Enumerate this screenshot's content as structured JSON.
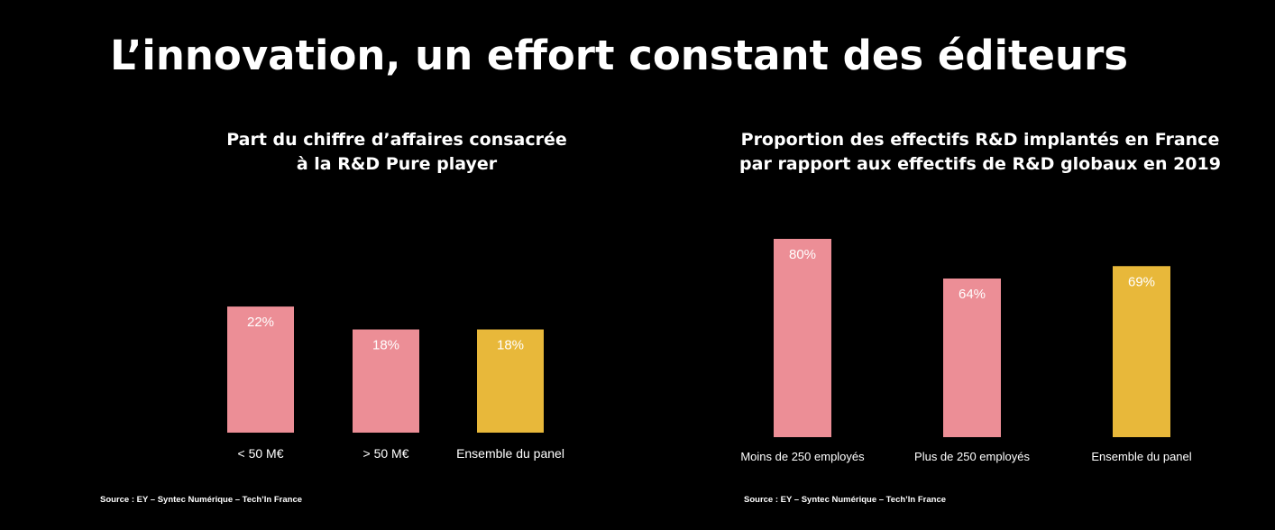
{
  "slide": {
    "title": "L’innovation, un effort constant des éditeurs"
  },
  "colors": {
    "pink": "#ec8e96",
    "gold": "#e8b83a",
    "background": "#000000",
    "text": "#ffffff"
  },
  "chart_data": [
    {
      "type": "bar",
      "title_lines": [
        "Part du chiffre d’affaires consacrée",
        "à la R&D Pure player"
      ],
      "categories": [
        "< 50 M€",
        "> 50 M€",
        "Ensemble du panel"
      ],
      "values": [
        22,
        18,
        18
      ],
      "value_labels": [
        "22%",
        "18%",
        "18%"
      ],
      "bar_colors": [
        "#ec8e96",
        "#ec8e96",
        "#e8b83a"
      ],
      "ylim": [
        0,
        100
      ],
      "xlabel": "",
      "ylabel": "",
      "grid": false,
      "legend": "none",
      "source": "Source : EY – Syntec Numérique – Tech’In France"
    },
    {
      "type": "bar",
      "title_lines": [
        "Proportion des effectifs R&D implantés en France",
        "par rapport aux effectifs de R&D globaux en 2019"
      ],
      "categories": [
        "Moins de 250 employés",
        "Plus de 250 employés",
        "Ensemble du panel"
      ],
      "values": [
        80,
        64,
        69
      ],
      "value_labels": [
        "80%",
        "64%",
        "69%"
      ],
      "bar_colors": [
        "#ec8e96",
        "#ec8e96",
        "#e8b83a"
      ],
      "ylim": [
        0,
        100
      ],
      "xlabel": "",
      "ylabel": "",
      "grid": false,
      "legend": "none",
      "source": "Source : EY – Syntec Numérique – Tech’In France"
    }
  ]
}
